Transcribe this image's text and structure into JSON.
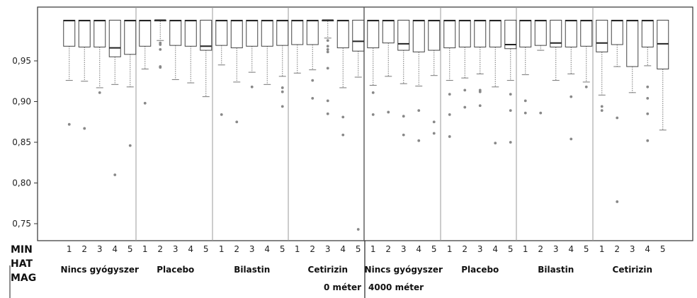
{
  "chart_data": {
    "type": "box",
    "ylim": [
      0.74,
      1.0
    ],
    "yticks": [
      0.95,
      0.9,
      0.85,
      0.8,
      0.75
    ],
    "ytick_labels": [
      "0,95",
      "0,90",
      "0,85",
      "0,80",
      "0,75"
    ],
    "row_labels": [
      "MIN",
      "HAT",
      "MAG"
    ],
    "categories": [
      "1",
      "2",
      "3",
      "4",
      "5"
    ],
    "altitudes": [
      {
        "label": "0 méter",
        "groups": [
          {
            "label": "Nincs gyógyszer",
            "boxes": [
              {
                "cat": "1",
                "q1": 0.968,
                "median": 0.9995,
                "q3": 1.0,
                "whisker_low": 0.926,
                "whisker_high": 1.0,
                "outliers": [
                  0.872
                ]
              },
              {
                "cat": "2",
                "q1": 0.967,
                "median": 0.9995,
                "q3": 1.0,
                "whisker_low": 0.925,
                "whisker_high": 1.0,
                "outliers": [
                  0.867
                ]
              },
              {
                "cat": "3",
                "q1": 0.967,
                "median": 0.9995,
                "q3": 1.0,
                "whisker_low": 0.917,
                "whisker_high": 1.0,
                "outliers": [
                  0.911
                ]
              },
              {
                "cat": "4",
                "q1": 0.955,
                "median": 0.966,
                "q3": 1.0,
                "whisker_low": 0.921,
                "whisker_high": 1.0,
                "outliers": [
                  0.81
                ]
              },
              {
                "cat": "5",
                "q1": 0.958,
                "median": 0.9995,
                "q3": 1.0,
                "whisker_low": 0.918,
                "whisker_high": 1.0,
                "outliers": [
                  0.846
                ]
              }
            ]
          },
          {
            "label": "Placebo",
            "boxes": [
              {
                "cat": "1",
                "q1": 0.968,
                "median": 0.9995,
                "q3": 1.0,
                "whisker_low": 0.94,
                "whisker_high": 1.0,
                "outliers": [
                  0.898
                ]
              },
              {
                "cat": "2",
                "q1": 0.999,
                "median": 1.0,
                "q3": 1.0,
                "whisker_low": 0.975,
                "whisker_high": 1.0,
                "outliers": [
                  0.972,
                  0.97,
                  0.964,
                  0.943,
                  0.942
                ]
              },
              {
                "cat": "3",
                "q1": 0.969,
                "median": 0.9995,
                "q3": 1.0,
                "whisker_low": 0.927,
                "whisker_high": 1.0,
                "outliers": []
              },
              {
                "cat": "4",
                "q1": 0.968,
                "median": 0.9995,
                "q3": 1.0,
                "whisker_low": 0.923,
                "whisker_high": 1.0,
                "outliers": []
              },
              {
                "cat": "5",
                "q1": 0.963,
                "median": 0.968,
                "q3": 1.0,
                "whisker_low": 0.906,
                "whisker_high": 1.0,
                "outliers": []
              }
            ]
          },
          {
            "label": "Bilastin",
            "boxes": [
              {
                "cat": "1",
                "q1": 0.969,
                "median": 0.9995,
                "q3": 1.0,
                "whisker_low": 0.945,
                "whisker_high": 1.0,
                "outliers": [
                  0.884
                ]
              },
              {
                "cat": "2",
                "q1": 0.966,
                "median": 0.9995,
                "q3": 1.0,
                "whisker_low": 0.924,
                "whisker_high": 1.0,
                "outliers": [
                  0.875
                ]
              },
              {
                "cat": "3",
                "q1": 0.968,
                "median": 0.9995,
                "q3": 1.0,
                "whisker_low": 0.936,
                "whisker_high": 1.0,
                "outliers": [
                  0.918
                ]
              },
              {
                "cat": "4",
                "q1": 0.968,
                "median": 0.9995,
                "q3": 1.0,
                "whisker_low": 0.921,
                "whisker_high": 1.0,
                "outliers": []
              },
              {
                "cat": "5",
                "q1": 0.969,
                "median": 0.9995,
                "q3": 1.0,
                "whisker_low": 0.931,
                "whisker_high": 1.0,
                "outliers": [
                  0.917,
                  0.912,
                  0.894
                ]
              }
            ]
          },
          {
            "label": "Cetirizin",
            "boxes": [
              {
                "cat": "1",
                "q1": 0.97,
                "median": 0.9995,
                "q3": 1.0,
                "whisker_low": 0.935,
                "whisker_high": 1.0,
                "outliers": []
              },
              {
                "cat": "2",
                "q1": 0.97,
                "median": 0.9995,
                "q3": 1.0,
                "whisker_low": 0.939,
                "whisker_high": 1.0,
                "outliers": [
                  0.926,
                  0.904
                ]
              },
              {
                "cat": "3",
                "q1": 0.999,
                "median": 1.0,
                "q3": 1.0,
                "whisker_low": 0.978,
                "whisker_high": 1.0,
                "outliers": [
                  0.975,
                  0.968,
                  0.964,
                  0.961,
                  0.941,
                  0.901,
                  0.885
                ]
              },
              {
                "cat": "4",
                "q1": 0.966,
                "median": 0.9995,
                "q3": 1.0,
                "whisker_low": 0.917,
                "whisker_high": 1.0,
                "outliers": [
                  0.881,
                  0.859
                ]
              },
              {
                "cat": "5",
                "q1": 0.962,
                "median": 0.974,
                "q3": 1.0,
                "whisker_low": 0.93,
                "whisker_high": 1.0,
                "outliers": [
                  0.743
                ]
              }
            ]
          }
        ]
      },
      {
        "label": "4000 méter",
        "groups": [
          {
            "label": "Nincs gyógyszer",
            "boxes": [
              {
                "cat": "1",
                "q1": 0.966,
                "median": 0.9995,
                "q3": 1.0,
                "whisker_low": 0.92,
                "whisker_high": 1.0,
                "outliers": [
                  0.911,
                  0.884
                ]
              },
              {
                "cat": "2",
                "q1": 0.972,
                "median": 0.9995,
                "q3": 1.0,
                "whisker_low": 0.931,
                "whisker_high": 1.0,
                "outliers": [
                  0.887
                ]
              },
              {
                "cat": "3",
                "q1": 0.963,
                "median": 0.971,
                "q3": 1.0,
                "whisker_low": 0.922,
                "whisker_high": 1.0,
                "outliers": [
                  0.882,
                  0.859
                ]
              },
              {
                "cat": "4",
                "q1": 0.961,
                "median": 0.9995,
                "q3": 1.0,
                "whisker_low": 0.919,
                "whisker_high": 1.0,
                "outliers": [
                  0.889,
                  0.852
                ]
              },
              {
                "cat": "5",
                "q1": 0.963,
                "median": 0.9995,
                "q3": 1.0,
                "whisker_low": 0.932,
                "whisker_high": 1.0,
                "outliers": [
                  0.875,
                  0.861
                ]
              }
            ]
          },
          {
            "label": "Placebo",
            "boxes": [
              {
                "cat": "1",
                "q1": 0.966,
                "median": 0.9995,
                "q3": 1.0,
                "whisker_low": 0.926,
                "whisker_high": 1.0,
                "outliers": [
                  0.909,
                  0.884,
                  0.857
                ]
              },
              {
                "cat": "2",
                "q1": 0.967,
                "median": 0.9995,
                "q3": 1.0,
                "whisker_low": 0.929,
                "whisker_high": 1.0,
                "outliers": [
                  0.914,
                  0.893
                ]
              },
              {
                "cat": "3",
                "q1": 0.967,
                "median": 0.9995,
                "q3": 1.0,
                "whisker_low": 0.934,
                "whisker_high": 1.0,
                "outliers": [
                  0.914,
                  0.912,
                  0.895
                ]
              },
              {
                "cat": "4",
                "q1": 0.967,
                "median": 0.9995,
                "q3": 1.0,
                "whisker_low": 0.918,
                "whisker_high": 1.0,
                "outliers": [
                  0.849
                ]
              },
              {
                "cat": "5",
                "q1": 0.965,
                "median": 0.97,
                "q3": 1.0,
                "whisker_low": 0.926,
                "whisker_high": 1.0,
                "outliers": [
                  0.909,
                  0.889,
                  0.85
                ]
              }
            ]
          },
          {
            "label": "Bilastin",
            "boxes": [
              {
                "cat": "1",
                "q1": 0.967,
                "median": 0.9995,
                "q3": 1.0,
                "whisker_low": 0.933,
                "whisker_high": 1.0,
                "outliers": [
                  0.901,
                  0.886
                ]
              },
              {
                "cat": "2",
                "q1": 0.969,
                "median": 0.9995,
                "q3": 1.0,
                "whisker_low": 0.963,
                "whisker_high": 1.0,
                "outliers": [
                  0.886
                ]
              },
              {
                "cat": "3",
                "q1": 0.967,
                "median": 0.972,
                "q3": 1.0,
                "whisker_low": 0.926,
                "whisker_high": 1.0,
                "outliers": []
              },
              {
                "cat": "4",
                "q1": 0.967,
                "median": 0.9995,
                "q3": 1.0,
                "whisker_low": 0.934,
                "whisker_high": 1.0,
                "outliers": [
                  0.906,
                  0.854
                ]
              },
              {
                "cat": "5",
                "q1": 0.968,
                "median": 0.9995,
                "q3": 1.0,
                "whisker_low": 0.924,
                "whisker_high": 1.0,
                "outliers": [
                  0.918
                ]
              }
            ]
          },
          {
            "label": "Cetirizin",
            "boxes": [
              {
                "cat": "1",
                "q1": 0.961,
                "median": 0.972,
                "q3": 1.0,
                "whisker_low": 0.908,
                "whisker_high": 1.0,
                "outliers": [
                  0.894,
                  0.889
                ]
              },
              {
                "cat": "2",
                "q1": 0.97,
                "median": 0.9995,
                "q3": 1.0,
                "whisker_low": 0.943,
                "whisker_high": 1.0,
                "outliers": [
                  0.88,
                  0.777
                ]
              },
              {
                "cat": "3",
                "q1": 0.943,
                "median": 0.9995,
                "q3": 1.0,
                "whisker_low": 0.911,
                "whisker_high": 1.0,
                "outliers": []
              },
              {
                "cat": "4",
                "q1": 0.967,
                "median": 0.9995,
                "q3": 1.0,
                "whisker_low": 0.944,
                "whisker_high": 1.0,
                "outliers": [
                  0.918,
                  0.904,
                  0.885,
                  0.852
                ]
              },
              {
                "cat": "5",
                "q1": 0.94,
                "median": 0.971,
                "q3": 1.0,
                "whisker_low": 0.865,
                "whisker_high": 1.0,
                "outliers": []
              }
            ]
          }
        ]
      }
    ]
  }
}
